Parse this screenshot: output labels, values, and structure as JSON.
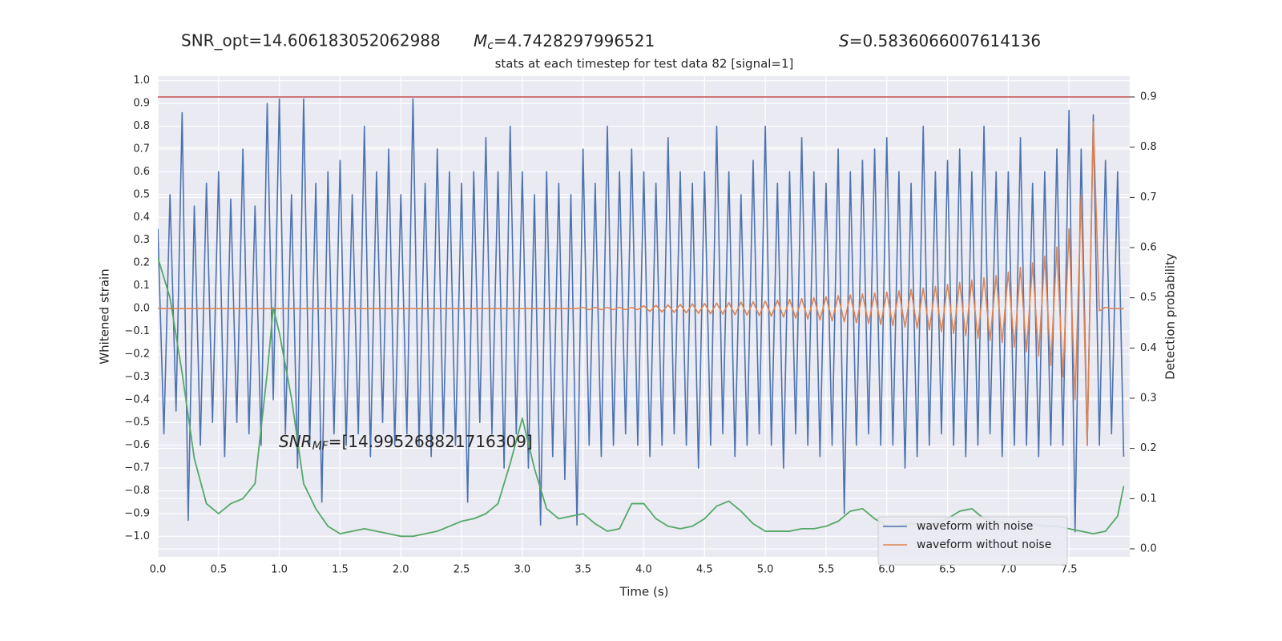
{
  "chart_data": {
    "type": "line",
    "annotations": {
      "snr_opt": {
        "text": "SNR_opt=14.606183052062988"
      },
      "mc": {
        "symbol": "M",
        "subscript": "c",
        "text": "=4.7428297996521"
      },
      "s": {
        "symbol": "S",
        "text": "=0.5836066007614136"
      },
      "snr_mf": {
        "symbol": "SNR",
        "subscript": "MF",
        "text": "=[14.995268821716309]"
      }
    },
    "title": "stats at each timestep for test data 82 [signal=1]",
    "xlabel": "Time (s)",
    "ylabel": "Whitened strain",
    "y2label": "Detection probability",
    "xlim": [
      0,
      8
    ],
    "ylim": [
      -1.09,
      1.02
    ],
    "y2lim": [
      -0.016,
      0.9415
    ],
    "xticks": [
      {
        "value": 0,
        "label": "0.0"
      },
      0.5,
      {
        "value": 1,
        "label": "1.0"
      },
      1.5,
      {
        "value": 2,
        "label": "2.0"
      },
      2.5,
      {
        "value": 3,
        "label": "3.0"
      },
      3.5,
      {
        "value": 4,
        "label": "4.0"
      },
      4.5,
      {
        "value": 5,
        "label": "5.0"
      },
      5.5,
      {
        "value": 6,
        "label": "6.0"
      },
      6.5,
      {
        "value": 7,
        "label": "7.0"
      },
      7.5
    ],
    "yticks": [
      {
        "value": -1.0,
        "label": "−1.0"
      },
      {
        "value": -0.9,
        "label": "−0.9"
      },
      {
        "value": -0.8,
        "label": "−0.8"
      },
      {
        "value": -0.7,
        "label": "−0.7"
      },
      {
        "value": -0.6,
        "label": "−0.6"
      },
      {
        "value": -0.5,
        "label": "−0.5"
      },
      {
        "value": -0.4,
        "label": "−0.4"
      },
      {
        "value": -0.3,
        "label": "−0.3"
      },
      {
        "value": -0.2,
        "label": "−0.2"
      },
      {
        "value": -0.1,
        "label": "−0.1"
      },
      {
        "value": 0,
        "label": "0.0"
      },
      0.1,
      0.2,
      0.3,
      0.4,
      0.5,
      0.6,
      0.7,
      0.8,
      0.9,
      {
        "value": 1.0,
        "label": "1.0"
      }
    ],
    "y2ticks": [
      {
        "value": 0,
        "label": "0.0"
      },
      0.1,
      0.2,
      0.3,
      0.4,
      0.5,
      0.6,
      0.7,
      0.8,
      0.9
    ],
    "grid": true,
    "legend": "lower right",
    "hlines": [
      {
        "value": 0.9,
        "axis": "y2",
        "color": "#c44e52"
      }
    ],
    "x": [
      0,
      0.05,
      0.1,
      0.15,
      0.2,
      0.25,
      0.3,
      0.35,
      0.4,
      0.45,
      0.5,
      0.55,
      0.6,
      0.65,
      0.7,
      0.75,
      0.8,
      0.85,
      0.9,
      0.95,
      1,
      1.05,
      1.1,
      1.15,
      1.2,
      1.25,
      1.3,
      1.35,
      1.4,
      1.45,
      1.5,
      1.55,
      1.6,
      1.65,
      1.7,
      1.75,
      1.8,
      1.85,
      1.9,
      1.95,
      2,
      2.05,
      2.1,
      2.15,
      2.2,
      2.25,
      2.3,
      2.35,
      2.4,
      2.45,
      2.5,
      2.55,
      2.6,
      2.65,
      2.7,
      2.75,
      2.8,
      2.85,
      2.9,
      2.95,
      3,
      3.05,
      3.1,
      3.15,
      3.2,
      3.25,
      3.3,
      3.35,
      3.4,
      3.45,
      3.5,
      3.55,
      3.6,
      3.65,
      3.7,
      3.75,
      3.8,
      3.85,
      3.9,
      3.95,
      4,
      4.05,
      4.1,
      4.15,
      4.2,
      4.25,
      4.3,
      4.35,
      4.4,
      4.45,
      4.5,
      4.55,
      4.6,
      4.65,
      4.7,
      4.75,
      4.8,
      4.85,
      4.9,
      4.95,
      5,
      5.05,
      5.1,
      5.15,
      5.2,
      5.25,
      5.3,
      5.35,
      5.4,
      5.45,
      5.5,
      5.55,
      5.6,
      5.65,
      5.7,
      5.75,
      5.8,
      5.85,
      5.9,
      5.95,
      6,
      6.05,
      6.1,
      6.15,
      6.2,
      6.25,
      6.3,
      6.35,
      6.4,
      6.45,
      6.5,
      6.55,
      6.6,
      6.65,
      6.7,
      6.75,
      6.8,
      6.85,
      6.9,
      6.95,
      7,
      7.05,
      7.1,
      7.15,
      7.2,
      7.25,
      7.3,
      7.35,
      7.4,
      7.45,
      7.5,
      7.55,
      7.6,
      7.65,
      7.7,
      7.75,
      7.8,
      7.85,
      7.9,
      7.95
    ],
    "series": [
      {
        "name": "waveform with noise",
        "color": "#4c72b0",
        "values": [
          0.35,
          -0.55,
          0.5,
          -0.45,
          0.86,
          -0.93,
          0.45,
          -0.6,
          0.55,
          -0.5,
          0.6,
          -0.65,
          0.48,
          -0.5,
          0.7,
          -0.55,
          0.45,
          -0.6,
          0.9,
          -0.4,
          0.92,
          -0.55,
          0.5,
          -0.7,
          0.92,
          -0.6,
          0.55,
          -0.85,
          0.6,
          -0.55,
          0.65,
          -0.6,
          0.5,
          -0.55,
          0.8,
          -0.65,
          0.6,
          -0.5,
          0.7,
          -0.6,
          0.5,
          -0.55,
          0.92,
          -0.6,
          0.55,
          -0.65,
          0.7,
          -0.55,
          0.6,
          -0.6,
          0.55,
          -0.85,
          0.6,
          -0.5,
          0.75,
          -0.55,
          0.6,
          -0.7,
          0.8,
          -0.55,
          0.6,
          -0.7,
          0.5,
          -0.95,
          0.6,
          -0.65,
          0.55,
          -0.75,
          0.5,
          -0.95,
          0.7,
          -0.6,
          0.55,
          -0.65,
          0.8,
          -0.6,
          0.6,
          -0.55,
          0.7,
          -0.6,
          0.6,
          -0.65,
          0.55,
          -0.6,
          0.75,
          -0.55,
          0.6,
          -0.6,
          0.55,
          -0.7,
          0.6,
          -0.6,
          0.8,
          -0.55,
          0.6,
          -0.65,
          0.5,
          -0.6,
          0.65,
          -0.55,
          0.8,
          -0.6,
          0.55,
          -0.7,
          0.6,
          -0.55,
          0.75,
          -0.6,
          0.6,
          -0.65,
          0.55,
          -0.6,
          0.7,
          -0.9,
          0.6,
          -0.6,
          0.65,
          -0.55,
          0.7,
          -0.6,
          0.75,
          -0.6,
          0.6,
          -0.7,
          0.55,
          -0.65,
          0.8,
          -0.6,
          0.6,
          -0.55,
          0.65,
          -0.6,
          0.7,
          -0.65,
          0.6,
          -0.6,
          0.8,
          -0.55,
          0.6,
          -0.65,
          0.6,
          -0.6,
          0.75,
          -0.6,
          0.55,
          -0.65,
          0.6,
          -0.6,
          0.7,
          -0.6,
          0.87,
          -0.98,
          0.7,
          -0.6,
          0.85,
          -0.6,
          0.65,
          -0.55,
          0.6,
          -0.65
        ]
      },
      {
        "name": "waveform without noise",
        "color": "#dd8452",
        "values": [
          0,
          0,
          0,
          0,
          0,
          0,
          0,
          0,
          0,
          0,
          0,
          0,
          0,
          0,
          0,
          0,
          0,
          0,
          0,
          0,
          0,
          0,
          0,
          0,
          0,
          0,
          0,
          0,
          0,
          0,
          0,
          0,
          0,
          0,
          0,
          0,
          0,
          0,
          0,
          0,
          0,
          0,
          0,
          0,
          0,
          0,
          0,
          0,
          0,
          0,
          0,
          0,
          0,
          0,
          0,
          0,
          0,
          0,
          0,
          0,
          0,
          0,
          0,
          0,
          0,
          0,
          0,
          0,
          0,
          0,
          0.005,
          -0.005,
          0.005,
          -0.005,
          0.005,
          -0.005,
          0.005,
          -0.005,
          0.005,
          -0.005,
          0.012,
          -0.013,
          0.014,
          -0.015,
          0.016,
          -0.017,
          0.018,
          -0.019,
          0.02,
          -0.021,
          0.022,
          -0.023,
          0.024,
          -0.025,
          0.026,
          -0.027,
          0.028,
          -0.029,
          0.03,
          -0.031,
          0.032,
          -0.034,
          0.036,
          -0.038,
          0.04,
          -0.042,
          0.044,
          -0.046,
          0.048,
          -0.05,
          0.052,
          -0.054,
          0.056,
          -0.058,
          0.06,
          -0.062,
          0.064,
          -0.066,
          0.068,
          -0.07,
          0.072,
          -0.075,
          0.078,
          -0.081,
          0.084,
          -0.087,
          0.09,
          -0.094,
          0.098,
          -0.102,
          0.106,
          -0.11,
          0.115,
          -0.12,
          0.125,
          -0.13,
          0.135,
          -0.14,
          0.145,
          -0.15,
          0.16,
          -0.17,
          0.18,
          -0.19,
          0.2,
          -0.21,
          0.23,
          -0.25,
          0.27,
          -0.3,
          0.35,
          -0.4,
          0.5,
          -0.6,
          0.82,
          -0.01,
          0.005,
          0,
          0,
          0
        ]
      },
      {
        "color": "#55a868",
        "axis": "y2",
        "x": [
          0,
          0.1,
          0.2,
          0.3,
          0.4,
          0.5,
          0.6,
          0.7,
          0.8,
          0.9,
          0.95,
          1,
          1.1,
          1.2,
          1.3,
          1.4,
          1.5,
          1.6,
          1.7,
          1.8,
          1.9,
          2,
          2.1,
          2.2,
          2.3,
          2.4,
          2.5,
          2.6,
          2.7,
          2.8,
          2.9,
          3,
          3.1,
          3.2,
          3.3,
          3.4,
          3.5,
          3.6,
          3.7,
          3.8,
          3.9,
          4,
          4.1,
          4.2,
          4.3,
          4.4,
          4.5,
          4.6,
          4.7,
          4.8,
          4.9,
          5,
          5.1,
          5.2,
          5.3,
          5.4,
          5.5,
          5.6,
          5.7,
          5.8,
          5.9,
          6,
          6.1,
          6.2,
          6.3,
          6.4,
          6.5,
          6.6,
          6.7,
          6.8,
          6.9,
          7,
          7.1,
          7.2,
          7.3,
          7.4,
          7.5,
          7.6,
          7.7,
          7.8,
          7.9,
          7.95
        ],
        "values": [
          0.58,
          0.5,
          0.35,
          0.18,
          0.09,
          0.07,
          0.09,
          0.1,
          0.13,
          0.35,
          0.48,
          0.43,
          0.3,
          0.13,
          0.08,
          0.045,
          0.03,
          0.035,
          0.04,
          0.035,
          0.03,
          0.025,
          0.025,
          0.03,
          0.035,
          0.045,
          0.055,
          0.06,
          0.07,
          0.09,
          0.17,
          0.26,
          0.16,
          0.08,
          0.06,
          0.065,
          0.07,
          0.05,
          0.035,
          0.04,
          0.09,
          0.09,
          0.06,
          0.045,
          0.04,
          0.045,
          0.06,
          0.085,
          0.095,
          0.075,
          0.05,
          0.035,
          0.035,
          0.035,
          0.04,
          0.04,
          0.045,
          0.055,
          0.075,
          0.08,
          0.06,
          0.045,
          0.045,
          0.05,
          0.05,
          0.05,
          0.06,
          0.075,
          0.08,
          0.06,
          0.055,
          0.05,
          0.05,
          0.05,
          0.045,
          0.045,
          0.04,
          0.035,
          0.03,
          0.035,
          0.065,
          0.125
        ]
      }
    ]
  }
}
